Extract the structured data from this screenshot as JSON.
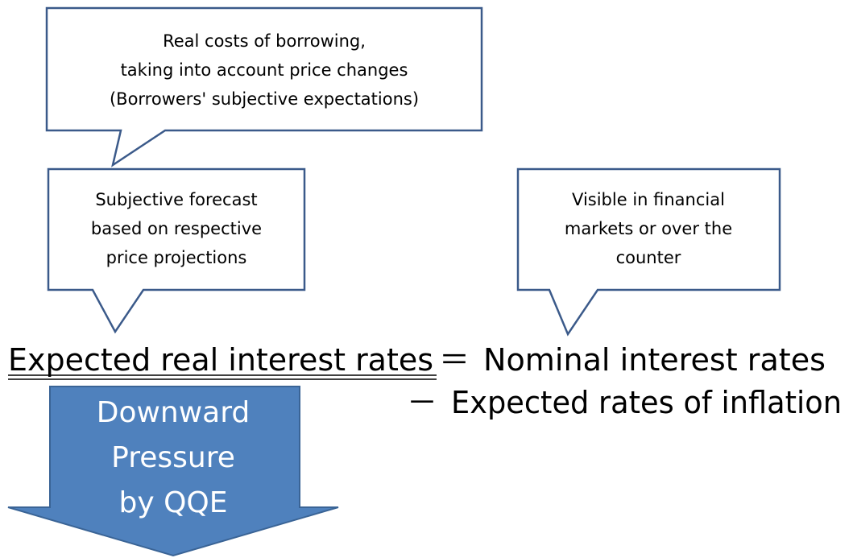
{
  "callouts": [
    {
      "lines": [
        "Real costs of borrowing,",
        "taking into account price changes",
        "(Borrowers' subjective expectations)"
      ]
    },
    {
      "lines": [
        "Subjective forecast",
        "based on respective",
        "price projections"
      ]
    },
    {
      "lines": [
        "Visible in financial",
        "markets or over the",
        "counter"
      ]
    }
  ],
  "equation": {
    "left": "Expected real interest rates",
    "equals": "＝",
    "first_term": "Nominal interest rates",
    "minus": "－",
    "second_term": "Expected rates of inflation"
  },
  "arrow": {
    "lines": [
      "Downward",
      "Pressure",
      "by QQE"
    ]
  }
}
